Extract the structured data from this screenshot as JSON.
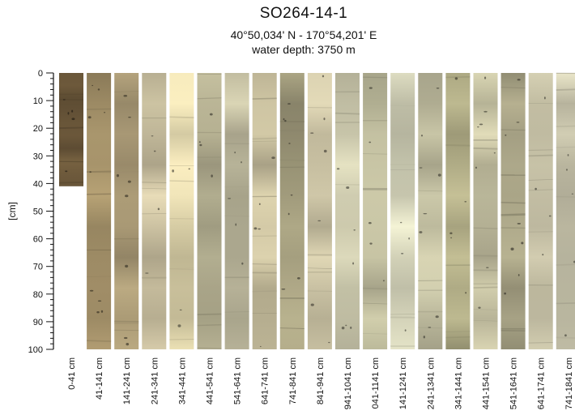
{
  "header": {
    "title": "SO264-14-1",
    "coords": "40°50,034' N  - 170°54,201' E",
    "water_depth": "water depth: 3750 m"
  },
  "axis": {
    "ylabel": "[cm]",
    "ticks": [
      "0",
      "10",
      "20",
      "30",
      "40",
      "50",
      "60",
      "70",
      "80",
      "90",
      "100"
    ],
    "ylim": [
      0,
      100
    ]
  },
  "core_sections": [
    {
      "label": "0-41 cm",
      "length_cm": 41,
      "color": "#6e5a3c"
    },
    {
      "label": "41-141 cm",
      "length_cm": 100,
      "color": "#a5926a"
    },
    {
      "label": "141-241 cm",
      "length_cm": 100,
      "color": "#b3a27c"
    },
    {
      "label": "241-341 cm",
      "length_cm": 100,
      "color": "#d1c7a6"
    },
    {
      "label": "341-441 cm",
      "length_cm": 100,
      "color": "#e3d8ae"
    },
    {
      "label": "441-541 cm",
      "length_cm": 100,
      "color": "#b9b495"
    },
    {
      "label": "541-641 cm",
      "length_cm": 100,
      "color": "#c6c1a4"
    },
    {
      "label": "641-741 cm",
      "length_cm": 100,
      "color": "#c8bf9e"
    },
    {
      "label": "741-841 cm",
      "length_cm": 100,
      "color": "#a6a080"
    },
    {
      "label": "841-941 cm",
      "length_cm": 100,
      "color": "#cdc5a6"
    },
    {
      "label": "941-1041 cm",
      "length_cm": 100,
      "color": "#d2cfb2"
    },
    {
      "label": "041-1141 cm",
      "length_cm": 100,
      "color": "#c2bfa0"
    },
    {
      "label": "141-1241 cm",
      "length_cm": 100,
      "color": "#dcdbc0"
    },
    {
      "label": "241-1341 cm",
      "length_cm": 100,
      "color": "#c3c0a2"
    },
    {
      "label": "341-1441 cm",
      "length_cm": 100,
      "color": "#b0ac86"
    },
    {
      "label": "441-1541 cm",
      "length_cm": 100,
      "color": "#ccc8a8"
    },
    {
      "label": "541-1641 cm",
      "length_cm": 100,
      "color": "#a5a083"
    },
    {
      "label": "641-1741 cm",
      "length_cm": 100,
      "color": "#bfbaa0"
    },
    {
      "label": "741-1841 cm",
      "length_cm": 100,
      "color": "#d3cfb5"
    }
  ]
}
